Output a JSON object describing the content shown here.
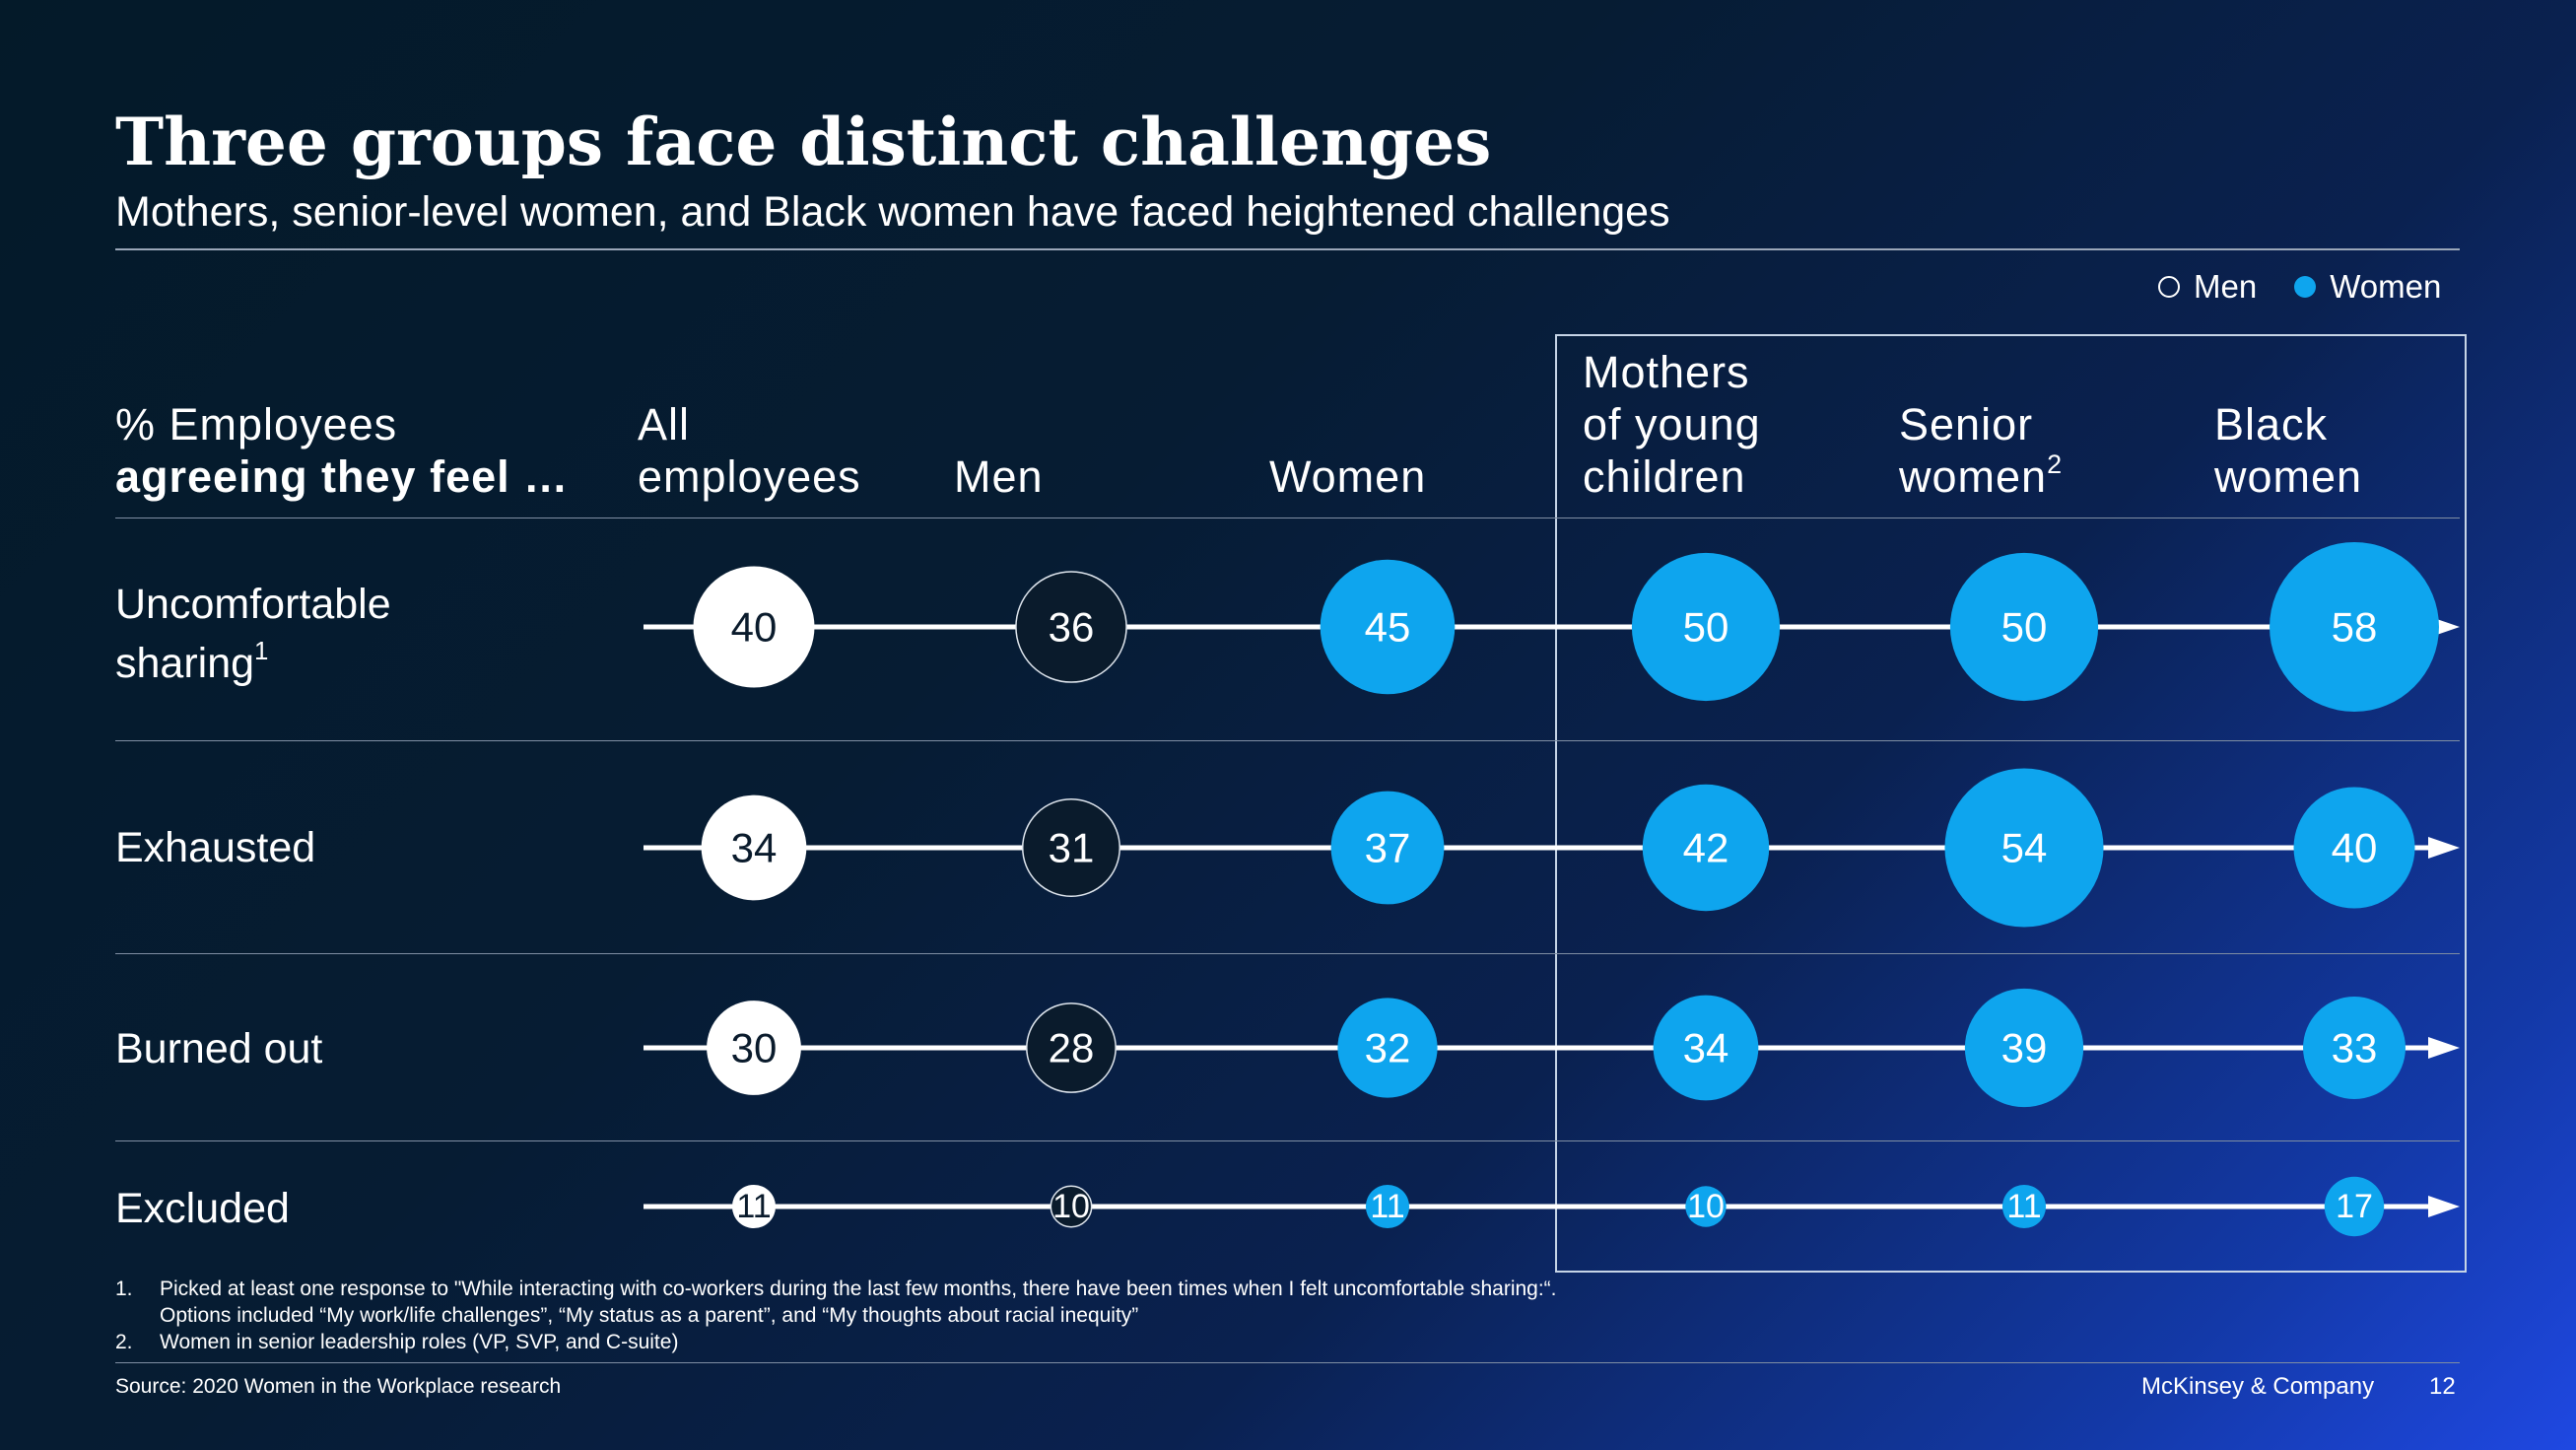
{
  "title": "Three groups face distinct challenges",
  "subtitle": "Mothers, senior-level women, and Black women have faced heightened challenges",
  "legend": {
    "men": {
      "label": "Men",
      "color": "#ffffff"
    },
    "women": {
      "label": "Women",
      "color": "#0ea5ee"
    }
  },
  "header": {
    "metric_line1": "% Employees",
    "metric_line2": "agreeing they feel …"
  },
  "columns": [
    {
      "line1": "All",
      "line2": "employees",
      "line3": "",
      "sup": ""
    },
    {
      "line1": "",
      "line2": "Men",
      "line3": "",
      "sup": ""
    },
    {
      "line1": "",
      "line2": "Women",
      "line3": "",
      "sup": ""
    },
    {
      "line1": "Mothers",
      "line2": "of young",
      "line3": "children",
      "sup": ""
    },
    {
      "line1": "Senior",
      "line2": "women",
      "line3": "",
      "sup": "2"
    },
    {
      "line1": "Black",
      "line2": "women",
      "line3": "",
      "sup": ""
    }
  ],
  "rows": [
    {
      "line1": "Uncomfortable",
      "line2": "sharing",
      "sup": "1"
    },
    {
      "line1": "Exhausted",
      "line2": "",
      "sup": ""
    },
    {
      "line1": "Burned out",
      "line2": "",
      "sup": ""
    },
    {
      "line1": "Excluded",
      "line2": "",
      "sup": ""
    }
  ],
  "footnotes": [
    {
      "num": "1.",
      "lines": [
        "Picked at least one response to \"While interacting with co-workers during the last few months, there have been times when I felt uncomfortable sharing:“.",
        "Options included “My work/life challenges”, “My status as a parent”, and “My thoughts about racial inequity”"
      ]
    },
    {
      "num": "2.",
      "lines": [
        "Women in senior leadership roles (VP, SVP, and C-suite)"
      ]
    }
  ],
  "source": "Source: 2020 Women in the Workplace research",
  "brand": "McKinsey & Company",
  "page_number": "12",
  "chart_data": {
    "type": "bubble-matrix",
    "categories": [
      "All employees",
      "Men",
      "Women",
      "Mothers of young children",
      "Senior women",
      "Black women"
    ],
    "category_group": [
      "all",
      "men",
      "women",
      "women",
      "women",
      "women"
    ],
    "series": [
      {
        "name": "Uncomfortable sharing",
        "values": [
          40,
          36,
          45,
          50,
          50,
          58
        ]
      },
      {
        "name": "Exhausted",
        "values": [
          34,
          31,
          37,
          42,
          54,
          40
        ]
      },
      {
        "name": "Burned out",
        "values": [
          30,
          28,
          32,
          34,
          39,
          33
        ]
      },
      {
        "name": "Excluded",
        "values": [
          11,
          10,
          11,
          10,
          11,
          17
        ]
      }
    ],
    "highlighted_categories": [
      "Mothers of young children",
      "Senior women",
      "Black women"
    ],
    "colors": {
      "all": "#ffffff",
      "men": "#0a1b2c",
      "women": "#0ea5ee",
      "line": "#ffffff",
      "label_dark": "#0a1b2c",
      "label_light": "#ffffff"
    }
  }
}
